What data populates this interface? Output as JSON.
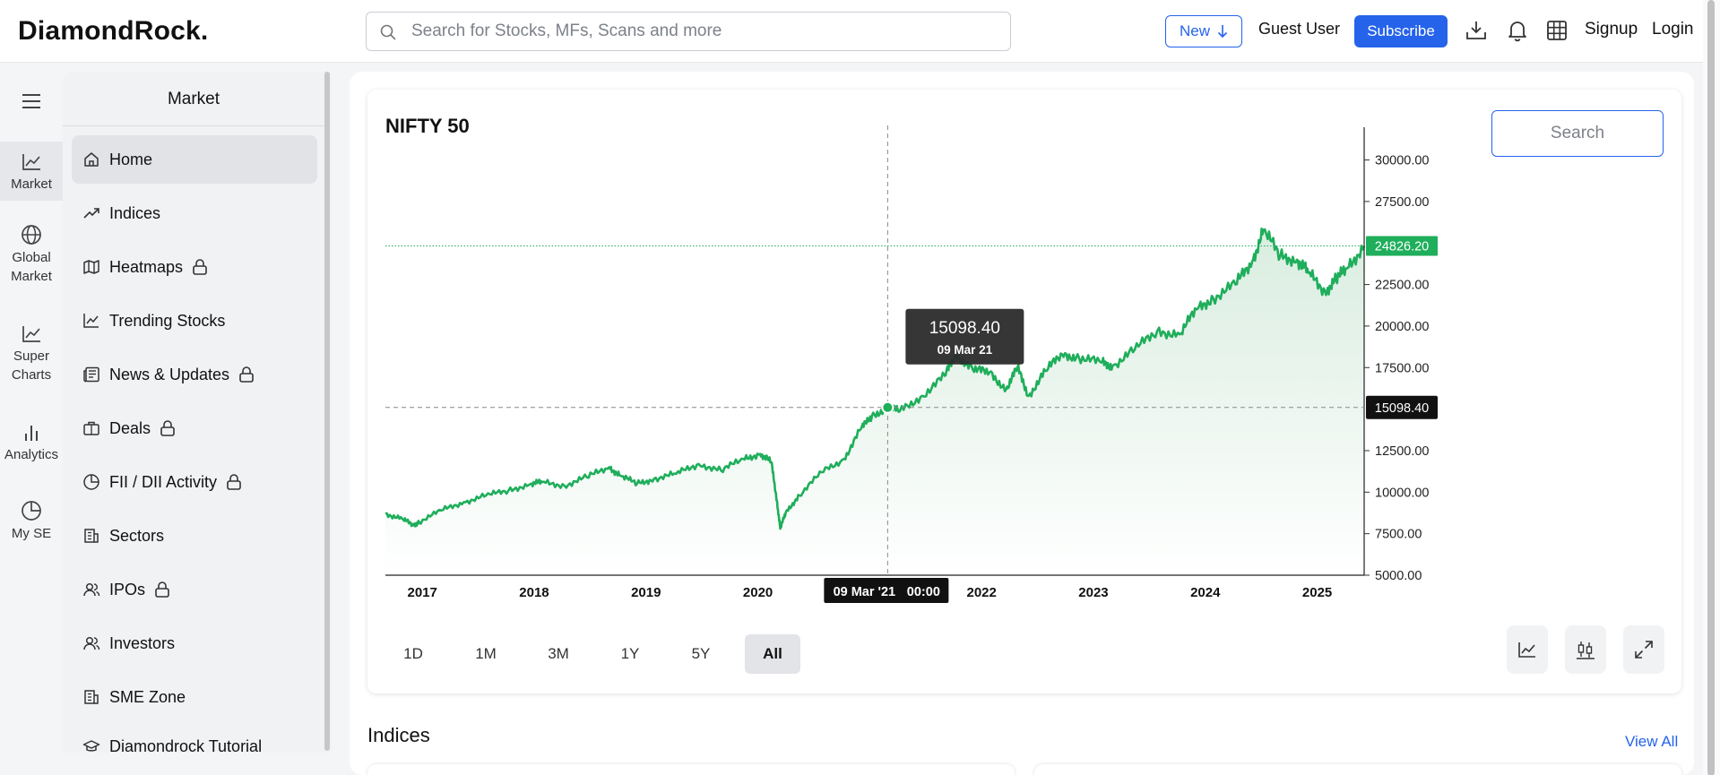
{
  "app": {
    "brand": "DiamondRock."
  },
  "header": {
    "search_placeholder": "Search for Stocks, MFs, Scans and more",
    "new_label": "New",
    "guest_label": "Guest User",
    "subscribe_label": "Subscribe",
    "signup_label": "Signup",
    "login_label": "Login",
    "icons": [
      "download-icon",
      "bell-icon",
      "grid-icon"
    ]
  },
  "rail": {
    "items": [
      {
        "label": "Market",
        "icon": "line-chart-icon"
      },
      {
        "label": "Global Market",
        "icon": "globe-icon"
      },
      {
        "label": "Super Charts",
        "icon": "line-chart-icon"
      },
      {
        "label": "Analytics",
        "icon": "bar-chart-icon"
      },
      {
        "label": "My SE",
        "icon": "pie-chart-icon"
      }
    ]
  },
  "sidebar": {
    "title": "Market",
    "items": [
      {
        "label": "Home",
        "icon": "home-icon",
        "locked": false
      },
      {
        "label": "Indices",
        "icon": "trending-up-icon",
        "locked": false
      },
      {
        "label": "Heatmaps",
        "icon": "map-icon",
        "locked": true
      },
      {
        "label": "Trending Stocks",
        "icon": "line-chart-icon",
        "locked": false
      },
      {
        "label": "News & Updates",
        "icon": "newspaper-icon",
        "locked": true
      },
      {
        "label": "Deals",
        "icon": "briefcase-icon",
        "locked": true
      },
      {
        "label": "FII / DII Activity",
        "icon": "pie-chart-icon",
        "locked": true
      },
      {
        "label": "Sectors",
        "icon": "building-icon",
        "locked": false
      },
      {
        "label": "IPOs",
        "icon": "users-icon",
        "locked": true
      },
      {
        "label": "Investors",
        "icon": "users-icon",
        "locked": false
      },
      {
        "label": "SME Zone",
        "icon": "building-icon",
        "locked": false
      },
      {
        "label": "Diamondrock Tutorial",
        "icon": "graduation-cap-icon",
        "locked": false
      }
    ]
  },
  "chart": {
    "title": "NIFTY 50",
    "search_placeholder": "Search",
    "tooltip_value": "15098.40",
    "tooltip_date": "09 Mar 21",
    "crosshair_date": "09 Mar '21",
    "crosshair_time": "00:00",
    "last_price_label": "24826.20",
    "crosshair_price_label": "15098.40",
    "ranges": [
      "1D",
      "1M",
      "3M",
      "1Y",
      "5Y",
      "All"
    ],
    "active_range": "All",
    "tools": [
      "line-chart-type-icon",
      "candlestick-icon",
      "expand-icon"
    ],
    "colors": {
      "line": "#1fae5b",
      "last_price": "#1fae5b",
      "crosshair_label": "#111111"
    }
  },
  "chart_data": {
    "type": "area",
    "title": "NIFTY 50",
    "x_ticks": [
      "2017",
      "2018",
      "2019",
      "2020",
      "2022",
      "2023",
      "2024",
      "2025"
    ],
    "y_ticks": [
      5000,
      7500,
      10000,
      12500,
      15000,
      17500,
      20000,
      22500,
      25000,
      27500,
      30000
    ],
    "y_tick_labels": [
      "5000.00",
      "7500.00",
      "10000.00",
      "12500.00",
      "17500.00",
      "20000.00",
      "22500.00",
      "27500.00",
      "30000.00"
    ],
    "ylim": [
      5000,
      31000
    ],
    "xlim": [
      2016.7,
      2025.45
    ],
    "grid": false,
    "last_value": 24826.2,
    "crosshair": {
      "x": 2021.19,
      "y": 15098.4
    },
    "series": [
      {
        "x": [
          2016.7,
          2016.85,
          2016.95,
          2017.0,
          2017.2,
          2017.4,
          2017.6,
          2017.8,
          2018.0,
          2018.1,
          2018.3,
          2018.5,
          2018.7,
          2018.8,
          2018.95,
          2019.1,
          2019.3,
          2019.5,
          2019.7,
          2019.9,
          2020.05,
          2020.15,
          2020.2,
          2020.23,
          2020.28,
          2020.4,
          2020.6,
          2020.8,
          2020.95,
          2021.05,
          2021.19,
          2021.3,
          2021.5,
          2021.7,
          2021.8,
          2021.95,
          2022.1,
          2022.25,
          2022.35,
          2022.45,
          2022.6,
          2022.75,
          2022.9,
          2023.1,
          2023.2,
          2023.4,
          2023.6,
          2023.8,
          2023.95,
          2024.1,
          2024.3,
          2024.45,
          2024.55,
          2024.7,
          2024.85,
          2024.95,
          2025.1,
          2025.2,
          2025.3,
          2025.45
        ],
        "y": [
          8700,
          8400,
          8000,
          8200,
          8900,
          9400,
          9800,
          10100,
          10500,
          10600,
          10400,
          10900,
          11500,
          11000,
          10500,
          10800,
          11100,
          11700,
          11300,
          12000,
          12300,
          11800,
          9500,
          7800,
          8800,
          9800,
          11200,
          12000,
          13800,
          14600,
          15098.4,
          14900,
          15800,
          17000,
          18300,
          17400,
          17200,
          16200,
          17500,
          15800,
          17300,
          18300,
          18100,
          17800,
          17600,
          18600,
          19700,
          19500,
          21000,
          21700,
          22500,
          23900,
          25800,
          24200,
          24000,
          23200,
          22100,
          22800,
          23500,
          24826.2
        ]
      }
    ]
  },
  "indices": {
    "title": "Indices",
    "view_all": "View All"
  }
}
